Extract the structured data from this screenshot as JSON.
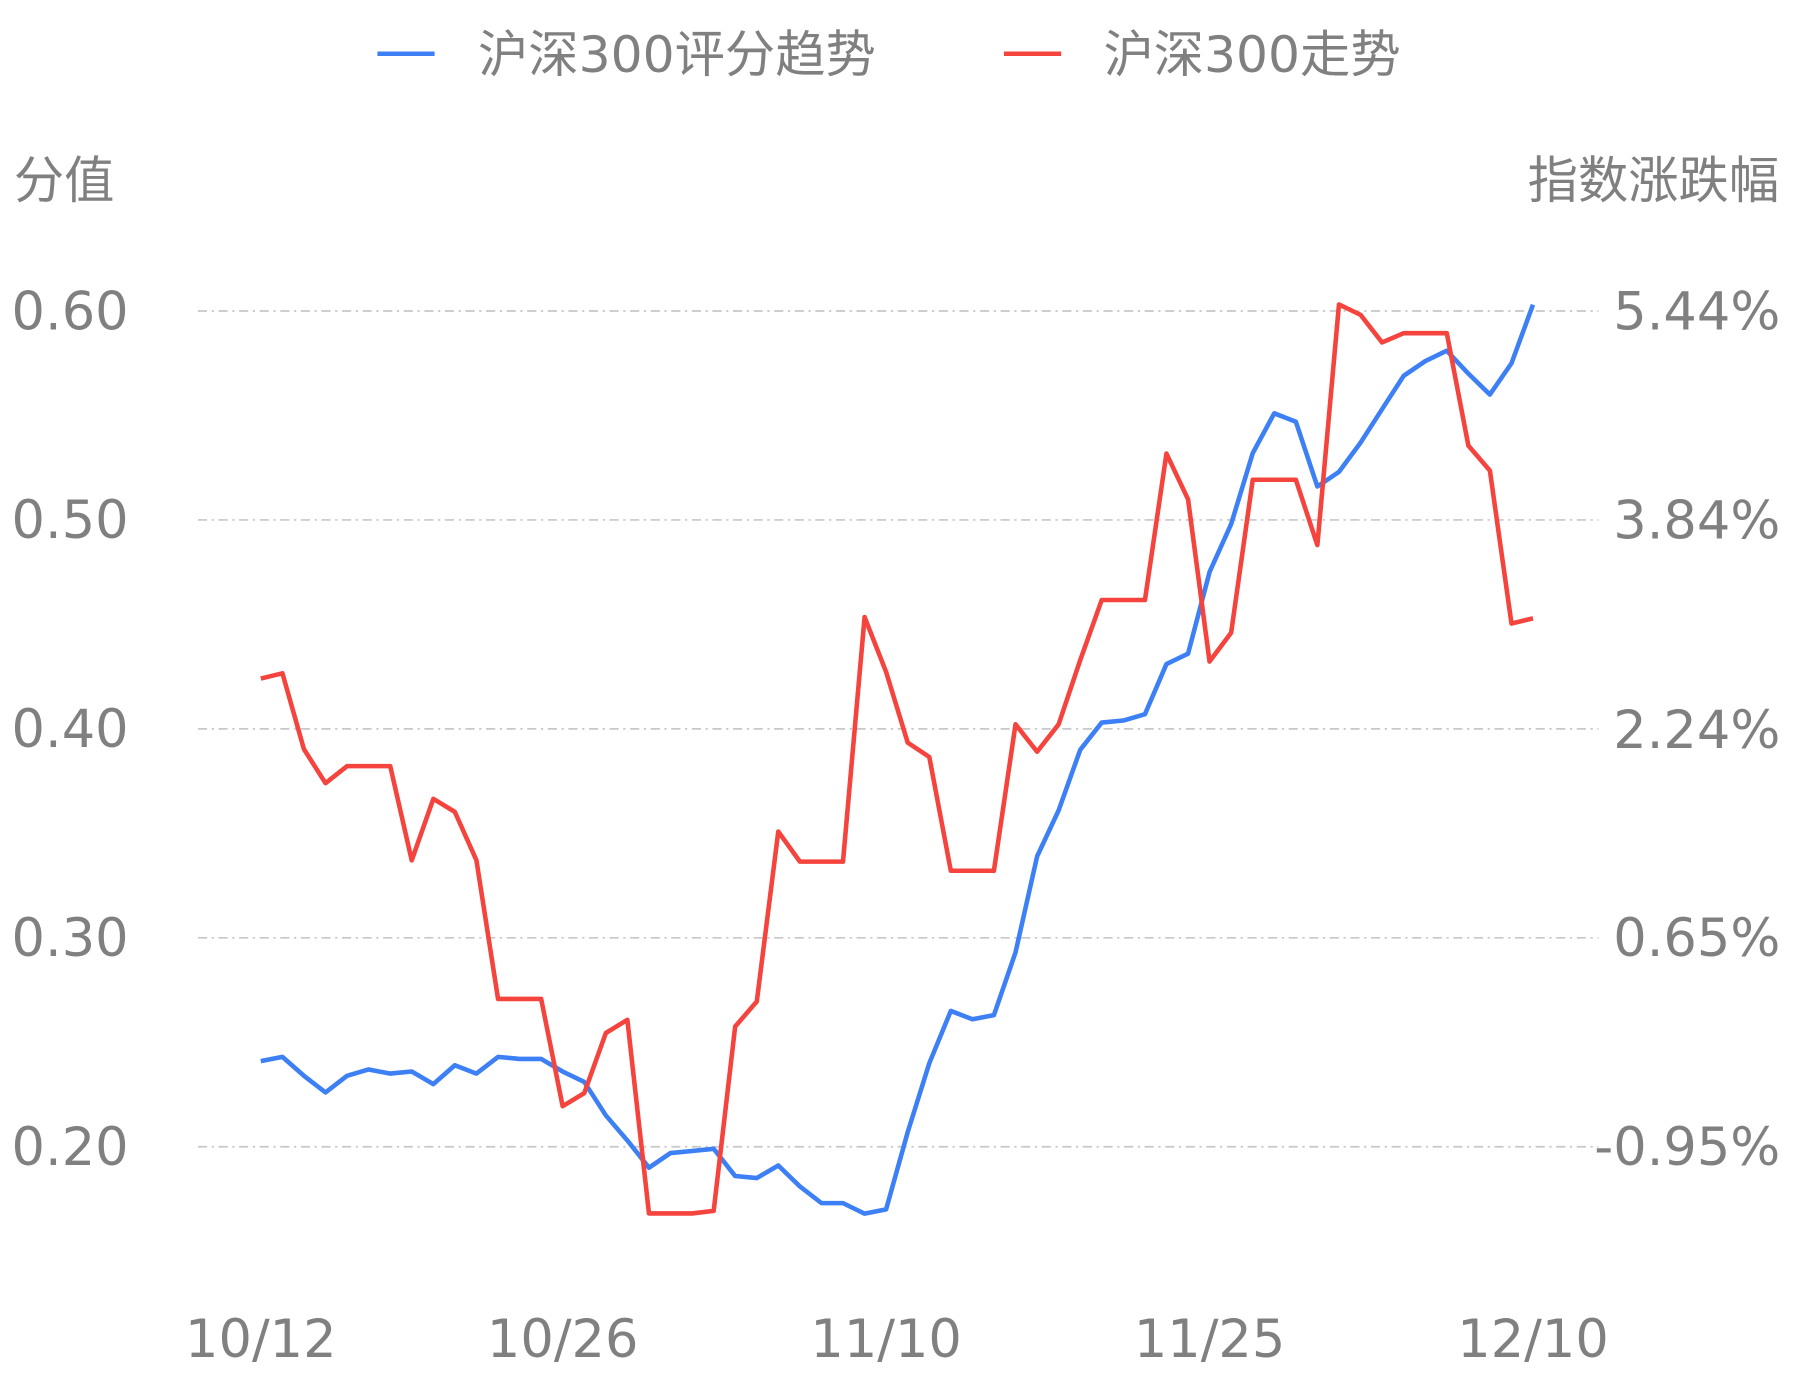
{
  "chart_data": {
    "type": "line",
    "legend_position": "top",
    "grid": true,
    "xlabel": "",
    "ylabel": "分值",
    "ylabel_right": "指数涨跌幅",
    "x_tick_labels": [
      "10/12",
      "10/26",
      "11/10",
      "11/25",
      "12/10"
    ],
    "x_tick_indices": [
      0,
      14,
      29,
      44,
      59
    ],
    "y_left": {
      "ticks": [
        0.2,
        0.3,
        0.4,
        0.5,
        0.6
      ],
      "tick_labels": [
        "0.20",
        "0.30",
        "0.40",
        "0.50",
        "0.60"
      ]
    },
    "y_right": {
      "ticks": [
        -0.95,
        0.65,
        2.24,
        3.84,
        5.44
      ],
      "tick_labels": [
        "-0.95%",
        "0.65%",
        "2.24%",
        "3.84%",
        "5.44%"
      ]
    },
    "series": [
      {
        "name": "沪深300评分趋势",
        "axis": "left",
        "color": "#3d7ff5",
        "values": [
          0.241,
          0.243,
          0.234,
          0.226,
          0.234,
          0.237,
          0.235,
          0.236,
          0.23,
          0.239,
          0.235,
          0.243,
          0.242,
          0.242,
          0.236,
          0.231,
          0.215,
          0.203,
          0.19,
          0.197,
          0.198,
          0.199,
          0.186,
          0.185,
          0.191,
          0.181,
          0.173,
          0.173,
          0.168,
          0.17,
          0.207,
          0.24,
          0.265,
          0.261,
          0.263,
          0.293,
          0.339,
          0.361,
          0.39,
          0.403,
          0.404,
          0.407,
          0.431,
          0.436,
          0.475,
          0.498,
          0.532,
          0.551,
          0.547,
          0.516,
          0.523,
          0.537,
          0.553,
          0.569,
          0.576,
          0.581,
          0.57,
          0.56,
          0.575,
          0.603
        ]
      },
      {
        "name": "沪深300走势",
        "axis": "right",
        "color": "#f5433d",
        "values": [
          2.63,
          2.67,
          2.09,
          1.83,
          1.96,
          1.96,
          1.96,
          1.24,
          1.71,
          1.61,
          1.24,
          0.18,
          0.18,
          0.18,
          -0.64,
          -0.54,
          -0.08,
          0.02,
          -1.46,
          -1.46,
          -1.46,
          -1.44,
          -0.03,
          0.16,
          1.46,
          1.23,
          1.23,
          1.23,
          3.1,
          2.68,
          2.14,
          2.03,
          1.16,
          1.16,
          1.16,
          2.28,
          2.07,
          2.28,
          2.77,
          3.23,
          3.23,
          3.23,
          4.35,
          4.0,
          2.76,
          2.98,
          4.15,
          4.15,
          4.15,
          3.65,
          5.49,
          5.41,
          5.2,
          5.27,
          5.27,
          5.27,
          4.41,
          4.22,
          3.05,
          3.09
        ]
      }
    ]
  }
}
